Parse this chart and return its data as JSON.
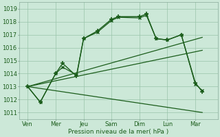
{
  "xlabel": "Pression niveau de la mer( hPa )",
  "ylim": [
    1010.5,
    1019.5
  ],
  "yticks": [
    1011,
    1012,
    1013,
    1014,
    1015,
    1016,
    1017,
    1018,
    1019
  ],
  "x_labels": [
    "Ven",
    "Mer",
    "Jeu",
    "Sam",
    "Dim",
    "Lun",
    "Mar"
  ],
  "x_positions": [
    0,
    1,
    2,
    3,
    4,
    5,
    6
  ],
  "xlim": [
    -0.3,
    6.8
  ],
  "background_color": "#cce8d8",
  "grid_color": "#99c4aa",
  "line_color": "#1a5c1a",
  "series": [
    {
      "name": "jagged_plus",
      "x": [
        0,
        0.45,
        1.0,
        1.25,
        1.75,
        2.0,
        2.5,
        3.0,
        3.25,
        4.0,
        4.25,
        4.6,
        5.0,
        5.5,
        6.0,
        6.25
      ],
      "y": [
        1013,
        1011.8,
        1014.0,
        1014.8,
        1013.8,
        1016.7,
        1017.3,
        1018.2,
        1018.4,
        1018.4,
        1018.6,
        1016.7,
        1016.6,
        1017.0,
        1013.3,
        1012.6
      ],
      "marker": "+",
      "lw": 1.0,
      "ms": 4.5,
      "mew": 1.2
    },
    {
      "name": "jagged_x",
      "x": [
        0,
        0.45,
        1.0,
        1.25,
        1.75,
        2.0,
        2.5,
        3.0,
        3.25,
        4.0,
        4.25,
        4.6,
        5.0,
        5.5,
        6.0,
        6.25
      ],
      "y": [
        1013,
        1011.8,
        1014.0,
        1014.5,
        1013.9,
        1016.7,
        1017.2,
        1018.1,
        1018.35,
        1018.3,
        1018.5,
        1016.7,
        1016.6,
        1017.0,
        1013.2,
        1012.7
      ],
      "marker": "x",
      "lw": 0.9,
      "ms": 3.5,
      "mew": 1.0
    },
    {
      "name": "diag_low",
      "x": [
        0,
        6.25
      ],
      "y": [
        1013.0,
        1011.0
      ],
      "marker": "none",
      "lw": 0.9,
      "ms": 0,
      "mew": 0
    },
    {
      "name": "diag_mid",
      "x": [
        0,
        6.25
      ],
      "y": [
        1013.0,
        1015.8
      ],
      "marker": "none",
      "lw": 0.9,
      "ms": 0,
      "mew": 0
    },
    {
      "name": "diag_high",
      "x": [
        0,
        6.25
      ],
      "y": [
        1013.0,
        1016.8
      ],
      "marker": "none",
      "lw": 0.9,
      "ms": 0,
      "mew": 0
    }
  ]
}
